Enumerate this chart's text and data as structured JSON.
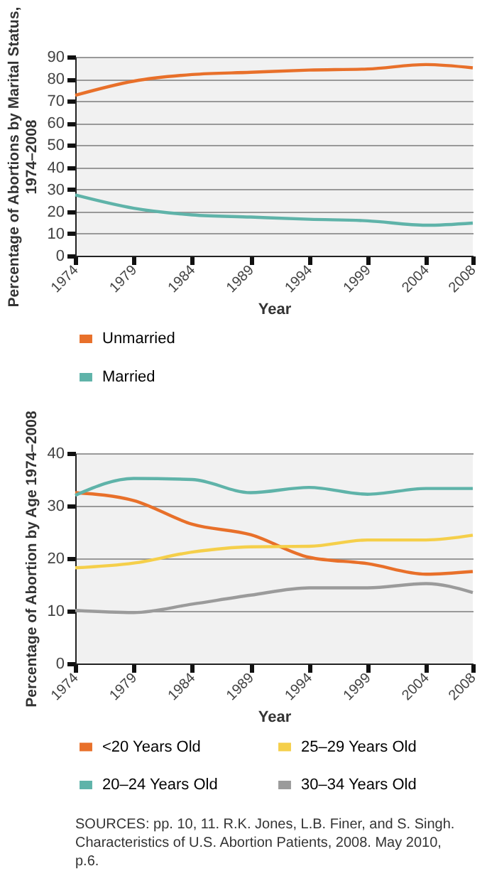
{
  "chart_data": [
    {
      "type": "line",
      "xlabel": "Year",
      "ylabel": "Percentage of Abortions by Marital Status, 1974–2008",
      "x": [
        1974,
        1979,
        1984,
        1989,
        1994,
        1999,
        2004,
        2008
      ],
      "series": [
        {
          "name": "Unmarried",
          "color": "#e8702a",
          "values": [
            72.6,
            79,
            82,
            83,
            84,
            84.5,
            86.5,
            85
          ]
        },
        {
          "name": "Married",
          "color": "#5fb3a9",
          "values": [
            27.5,
            21.5,
            18.5,
            17.5,
            16.5,
            15.8,
            13.8,
            14.8
          ]
        }
      ],
      "xlim": [
        1974,
        2008
      ],
      "xticks": [
        1974,
        1979,
        1984,
        1989,
        1994,
        1999,
        2004,
        2008
      ],
      "ylim": [
        0,
        90
      ],
      "yticks": [
        0,
        10,
        20,
        30,
        40,
        50,
        60,
        70,
        80,
        90
      ],
      "grid": "y",
      "legend": "bottom"
    },
    {
      "type": "line",
      "xlabel": "Year",
      "ylabel": "Percentage of Abortion by Age 1974–2008",
      "x": [
        1974,
        1979,
        1984,
        1989,
        1994,
        1999,
        2004,
        2008
      ],
      "series": [
        {
          "name": "<20 Years Old",
          "color": "#e8702a",
          "values": [
            32.5,
            31,
            26.5,
            24.5,
            20.2,
            19,
            17,
            17.5
          ]
        },
        {
          "name": "20–24 Years Old",
          "color": "#5fb3a9",
          "values": [
            32,
            35.2,
            35,
            32.5,
            33.5,
            32.2,
            33.3,
            33.3
          ]
        },
        {
          "name": "25–29 Years Old",
          "color": "#f5cf4a",
          "values": [
            18.2,
            19.1,
            21.2,
            22.2,
            22.3,
            23.5,
            23.5,
            24.4
          ]
        },
        {
          "name": "30–34 Years Old",
          "color": "#9b9b9b",
          "values": [
            10.1,
            9.7,
            11.3,
            13,
            14.4,
            14.4,
            15.2,
            13.5
          ]
        }
      ],
      "xlim": [
        1974,
        2008
      ],
      "xticks": [
        1974,
        1979,
        1984,
        1989,
        1994,
        1999,
        2004,
        2008
      ],
      "ylim": [
        0,
        40
      ],
      "yticks": [
        0,
        10,
        20,
        30,
        40
      ],
      "grid": "y",
      "legend": "bottom",
      "annotations": [
        "SOURCES: pp. 10, 11. R.K. Jones, L.B. Finer, and S. Singh. Characteristics of U.S. Abortion Patients, 2008. May 2010, p.6."
      ]
    }
  ]
}
